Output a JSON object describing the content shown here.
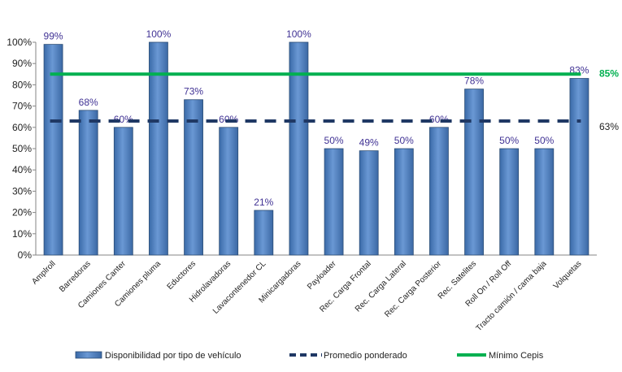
{
  "chart_data": {
    "type": "bar",
    "categories": [
      "Amplroll",
      "Barredoras",
      "Camiones Canter",
      "Camiones pluma",
      "Eductores",
      "Hidrolavadoras",
      "Lavacontenedor CL",
      "Minicargadoras",
      "Payloader",
      "Rec. Carga Frontal",
      "Rec. Carga Lateral",
      "Rec. Carga Posterior",
      "Rec. Satelites",
      "Roll On / Roll Off",
      "Tracto camión / cama baja",
      "Volquetas"
    ],
    "series": [
      {
        "name": "Disponibilidad por tipo de vehículo",
        "values": [
          99,
          68,
          60,
          100,
          73,
          60,
          21,
          100,
          50,
          49,
          50,
          60,
          78,
          50,
          50,
          83
        ],
        "labels": [
          "99%",
          "68%",
          "60%",
          "100%",
          "73%",
          "60%",
          "21%",
          "100%",
          "50%",
          "49%",
          "50%",
          "60%",
          "78%",
          "50%",
          "50%",
          "83%"
        ]
      }
    ],
    "reference_lines": [
      {
        "name": "Promedio ponderado",
        "value": 63,
        "label": "63%",
        "style": "dashed",
        "color": "#1f3864"
      },
      {
        "name": "Mínimo Cepis",
        "value": 85,
        "label": "85%",
        "style": "solid",
        "color": "#00b050"
      }
    ],
    "yticks": [
      "0%",
      "10%",
      "20%",
      "30%",
      "40%",
      "50%",
      "60%",
      "70%",
      "80%",
      "90%",
      "100%"
    ],
    "ylim": [
      0,
      100
    ],
    "grid": false,
    "legend_position": "bottom",
    "colors": {
      "bar": "#4f81bd",
      "bar_edge": "#2c4d75",
      "data_label": "#403294",
      "axis": "#868686"
    }
  }
}
